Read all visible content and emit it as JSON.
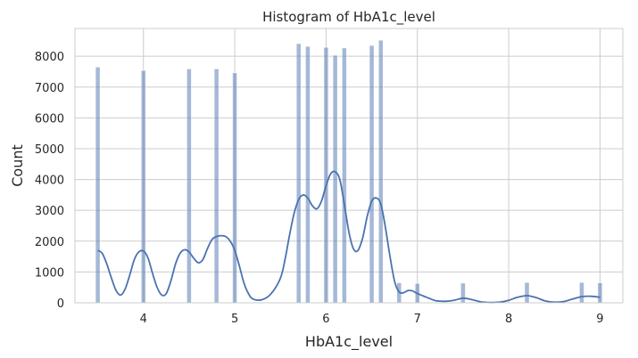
{
  "chart_data": {
    "type": "bar",
    "title": "Histogram of HbA1c_level",
    "xlabel": "HbA1c_level",
    "ylabel": "Count",
    "xlim": [
      3.25,
      9.25
    ],
    "ylim": [
      0,
      8900
    ],
    "x_ticks": [
      4,
      5,
      6,
      7,
      8,
      9
    ],
    "y_ticks": [
      0,
      1000,
      2000,
      3000,
      4000,
      5000,
      6000,
      7000,
      8000
    ],
    "grid": true,
    "bar_color": "#4c72b0",
    "bar_opacity": 0.5,
    "line_color": "#4c72b0",
    "bin_width": 0.05,
    "bars": [
      {
        "x": 3.5,
        "value": 7650
      },
      {
        "x": 4.0,
        "value": 7540
      },
      {
        "x": 4.5,
        "value": 7590
      },
      {
        "x": 4.8,
        "value": 7590
      },
      {
        "x": 5.0,
        "value": 7460
      },
      {
        "x": 5.7,
        "value": 8410
      },
      {
        "x": 5.8,
        "value": 8320
      },
      {
        "x": 6.0,
        "value": 8290
      },
      {
        "x": 6.1,
        "value": 8030
      },
      {
        "x": 6.2,
        "value": 8270
      },
      {
        "x": 6.5,
        "value": 8350
      },
      {
        "x": 6.6,
        "value": 8520
      },
      {
        "x": 6.8,
        "value": 650
      },
      {
        "x": 7.0,
        "value": 630
      },
      {
        "x": 7.5,
        "value": 640
      },
      {
        "x": 8.2,
        "value": 660
      },
      {
        "x": 8.8,
        "value": 660
      },
      {
        "x": 9.0,
        "value": 650
      }
    ],
    "kde": {
      "x": [
        3.5,
        3.55,
        3.6,
        3.65,
        3.7,
        3.75,
        3.8,
        3.85,
        3.9,
        3.95,
        4.0,
        4.05,
        4.1,
        4.15,
        4.2,
        4.25,
        4.3,
        4.35,
        4.4,
        4.45,
        4.5,
        4.55,
        4.6,
        4.65,
        4.7,
        4.75,
        4.8,
        4.85,
        4.9,
        4.95,
        5.0,
        5.05,
        5.1,
        5.15,
        5.2,
        5.3,
        5.4,
        5.5,
        5.55,
        5.6,
        5.65,
        5.7,
        5.75,
        5.8,
        5.85,
        5.9,
        5.95,
        6.0,
        6.05,
        6.1,
        6.15,
        6.2,
        6.25,
        6.3,
        6.35,
        6.4,
        6.45,
        6.5,
        6.55,
        6.6,
        6.65,
        6.7,
        6.75,
        6.8,
        6.85,
        6.9,
        6.95,
        7.0,
        7.1,
        7.2,
        7.3,
        7.4,
        7.5,
        7.6,
        7.7,
        7.8,
        7.9,
        8.0,
        8.1,
        8.2,
        8.3,
        8.4,
        8.5,
        8.6,
        8.7,
        8.8,
        8.9,
        9.0
      ],
      "y": [
        1700,
        1600,
        1250,
        800,
        400,
        250,
        450,
        900,
        1400,
        1650,
        1680,
        1450,
        950,
        500,
        250,
        300,
        700,
        1250,
        1600,
        1720,
        1650,
        1450,
        1300,
        1400,
        1750,
        2050,
        2150,
        2180,
        2150,
        2000,
        1700,
        1200,
        650,
        300,
        120,
        100,
        300,
        800,
        1400,
        2200,
        2900,
        3350,
        3500,
        3400,
        3150,
        3050,
        3300,
        3800,
        4180,
        4250,
        4000,
        3200,
        2300,
        1750,
        1700,
        2100,
        2800,
        3300,
        3400,
        3200,
        2450,
        1500,
        700,
        350,
        330,
        400,
        380,
        300,
        180,
        70,
        50,
        80,
        150,
        100,
        30,
        10,
        20,
        80,
        180,
        230,
        170,
        60,
        20,
        40,
        120,
        200,
        210,
        180
      ]
    }
  }
}
